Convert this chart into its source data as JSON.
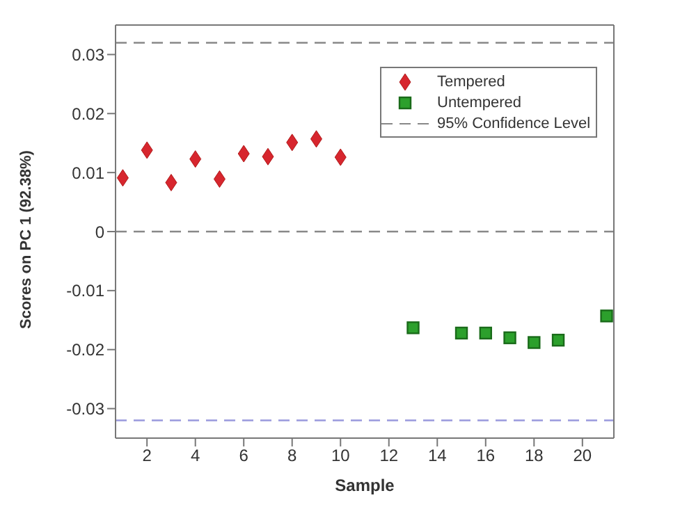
{
  "chart_data": {
    "type": "scatter",
    "xlabel": "Sample",
    "ylabel": "Scores on PC 1 (92.38%)",
    "xlim": [
      0.7,
      21.3
    ],
    "xticks": [
      2,
      4,
      6,
      8,
      10,
      12,
      14,
      16,
      18,
      20
    ],
    "ylim": [
      -0.035,
      0.035
    ],
    "yticks": [
      -0.03,
      -0.02,
      -0.01,
      0,
      0.01,
      0.02,
      0.03
    ],
    "legend": "top right",
    "series": [
      {
        "name": "Tempered",
        "color": "#d7262e",
        "marker": "diamond",
        "x": [
          1,
          2,
          3,
          4,
          5,
          6,
          7,
          8,
          9,
          10
        ],
        "values": [
          0.0091,
          0.0138,
          0.0083,
          0.0123,
          0.0089,
          0.0132,
          0.0127,
          0.0151,
          0.0157,
          0.0126
        ]
      },
      {
        "name": "Untempered",
        "color": "#2ca02c",
        "marker": "square",
        "x": [
          13,
          15,
          16,
          17,
          18,
          19,
          21
        ],
        "values": [
          -0.0163,
          -0.0172,
          -0.0172,
          -0.018,
          -0.0188,
          -0.0184,
          -0.0143
        ]
      }
    ],
    "ref_lines": [
      {
        "axis": "y",
        "value": 0.032,
        "label": "95% Confidence Level",
        "color": "#888888",
        "line_style": "dashed"
      },
      {
        "axis": "y",
        "value": 0,
        "label": null,
        "color": "#888888",
        "line_style": "dashed"
      },
      {
        "axis": "y",
        "value": -0.032,
        "label": null,
        "color": "#9999dd",
        "line_style": "dashed"
      }
    ]
  }
}
